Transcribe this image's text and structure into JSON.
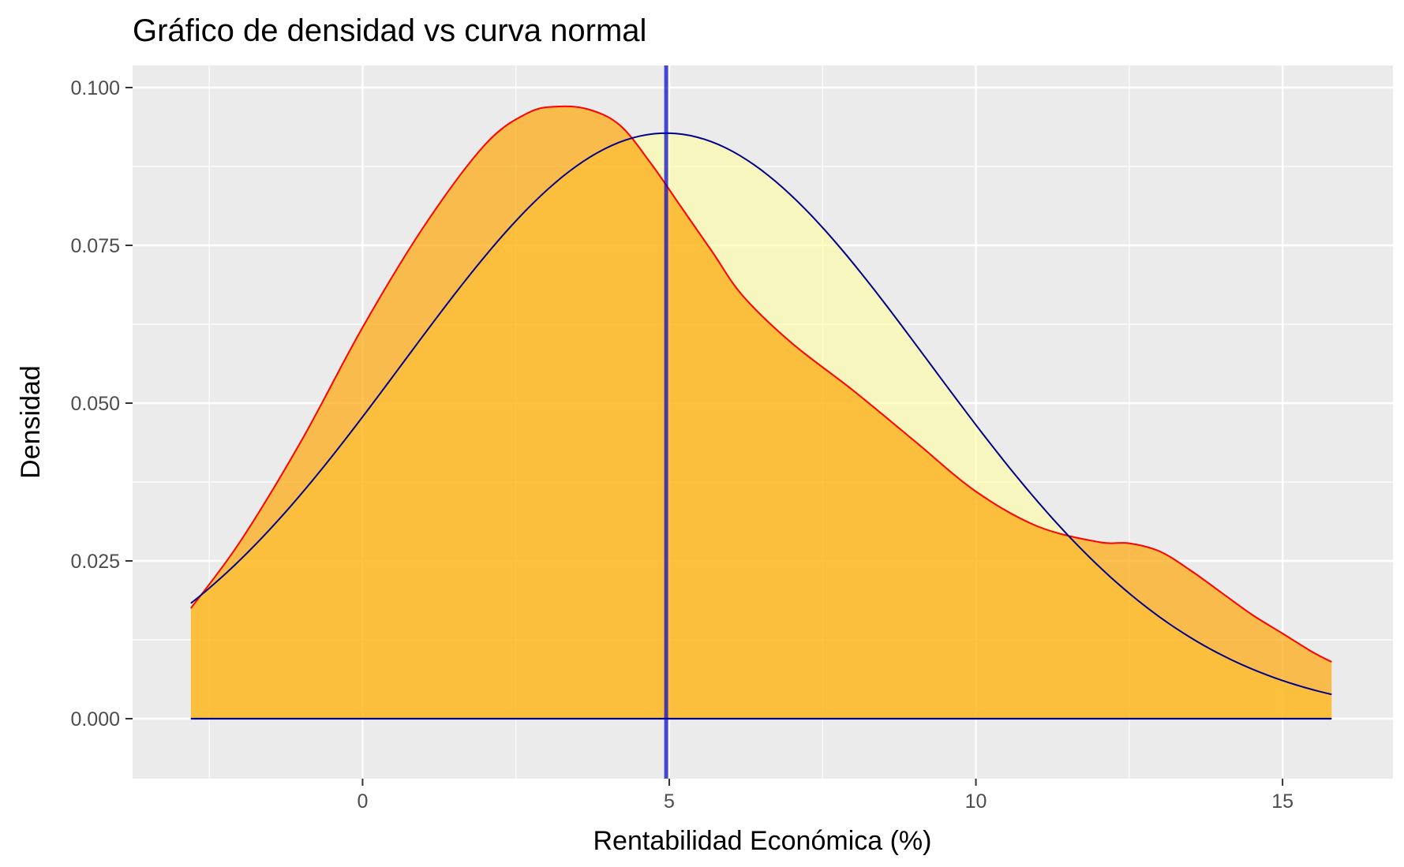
{
  "chart_data": {
    "type": "area",
    "title": "Gráfico de densidad vs curva normal",
    "xlabel": "Rentabilidad Económica (%)",
    "ylabel": "Densidad",
    "xlim": [
      -3.75,
      16.8
    ],
    "ylim": [
      -0.0095,
      0.1035
    ],
    "x_ticks": [
      0,
      5,
      10,
      15
    ],
    "x_tick_labels": [
      "0",
      "5",
      "10",
      "15"
    ],
    "y_ticks": [
      0,
      0.025,
      0.05,
      0.075,
      0.1
    ],
    "y_tick_labels": [
      "0.000",
      "0.025",
      "0.050",
      "0.075",
      "0.100"
    ],
    "grid": true,
    "vline_x": 4.95,
    "series": [
      {
        "kind": "kernel-density",
        "x": [
          -2.8,
          -2.0,
          -1.0,
          0.0,
          1.0,
          2.0,
          2.7,
          3.2,
          3.7,
          4.2,
          4.7,
          5.2,
          5.7,
          6.2,
          7.0,
          8.0,
          9.0,
          10.0,
          11.0,
          12.0,
          12.5,
          13.0,
          13.5,
          14.0,
          14.5,
          15.0,
          15.5,
          15.8
        ],
        "y": [
          0.0175,
          0.028,
          0.044,
          0.062,
          0.078,
          0.091,
          0.096,
          0.097,
          0.0965,
          0.094,
          0.088,
          0.081,
          0.074,
          0.067,
          0.0595,
          0.052,
          0.044,
          0.036,
          0.0305,
          0.028,
          0.0278,
          0.0265,
          0.0235,
          0.02,
          0.0165,
          0.0135,
          0.0105,
          0.009
        ]
      },
      {
        "kind": "normal-curve",
        "mean": 4.95,
        "sd": 4.3,
        "x_range": [
          -2.8,
          15.8
        ]
      }
    ],
    "colors": {
      "panel_background": "#ebebeb",
      "grid": "#ffffff",
      "density_fill": "#ffa500",
      "density_line": "#ff0000",
      "normal_fill": "#ffff99",
      "normal_line": "#00008b",
      "vline": "#0000cc"
    }
  }
}
